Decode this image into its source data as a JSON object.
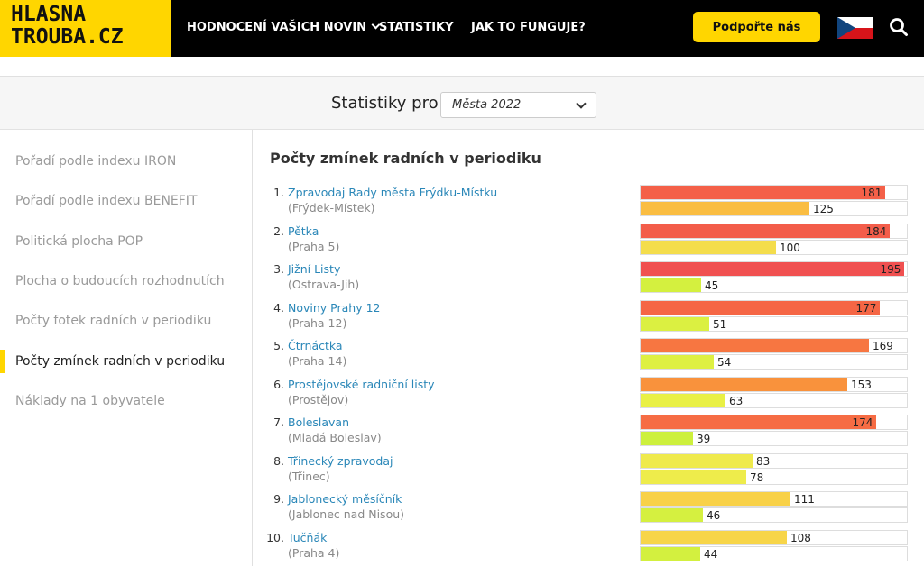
{
  "header": {
    "logo_line1": "HLASNA",
    "logo_line2": "TROUBA.CZ",
    "nav": [
      "HODNOCENÍ VAŠICH NOVIN",
      "STATISTIKY",
      "JAK TO FUNGUJE?"
    ],
    "support_label": "Podpořte nás",
    "flag_icon": "czech-flag-icon",
    "search_icon": "search-icon"
  },
  "stats": {
    "label": "Statistiky pro",
    "selected": "Města 2022"
  },
  "sidebar": {
    "items": [
      "Pořadí podle indexu IRON",
      "Pořadí podle indexu BENEFIT",
      "Politická plocha POP",
      "Plocha o budoucích rozhodnutích",
      "Počty fotek radních v periodiku",
      "Počty zmínek radních v periodiku",
      "Náklady na 1 obyvatele"
    ],
    "active_index": 5,
    "accent_color": "#ffd600"
  },
  "main": {
    "title": "Počty zmínek radních v periodiku",
    "rows": [
      {
        "rank": "1.",
        "name": "Zpravodaj Rady města Frýdku-Místku",
        "city": "(Frýdek-Místek)",
        "v1": "181",
        "v2": "125"
      },
      {
        "rank": "2.",
        "name": "Pětka",
        "city": "(Praha 5)",
        "v1": "184",
        "v2": "100"
      },
      {
        "rank": "3.",
        "name": "Jižní Listy",
        "city": "(Ostrava-Jih)",
        "v1": "195",
        "v2": "45"
      },
      {
        "rank": "4.",
        "name": "Noviny Prahy 12",
        "city": "(Praha 12)",
        "v1": "177",
        "v2": "51"
      },
      {
        "rank": "5.",
        "name": "Čtrnáctka",
        "city": "(Praha 14)",
        "v1": "169",
        "v2": "54"
      },
      {
        "rank": "6.",
        "name": "Prostějovské radniční listy",
        "city": "(Prostějov)",
        "v1": "153",
        "v2": "63"
      },
      {
        "rank": "7.",
        "name": "Boleslavan",
        "city": "(Mladá Boleslav)",
        "v1": "174",
        "v2": "39"
      },
      {
        "rank": "8.",
        "name": "Třinecký zpravodaj",
        "city": "(Třinec)",
        "v1": "83",
        "v2": "78"
      },
      {
        "rank": "9.",
        "name": "Jablonecký měsíčník",
        "city": "(Jablonec nad Nisou)",
        "v1": "111",
        "v2": "46"
      },
      {
        "rank": "10.",
        "name": "Tučňák",
        "city": "(Praha 4)",
        "v1": "108",
        "v2": "44"
      }
    ]
  }
}
